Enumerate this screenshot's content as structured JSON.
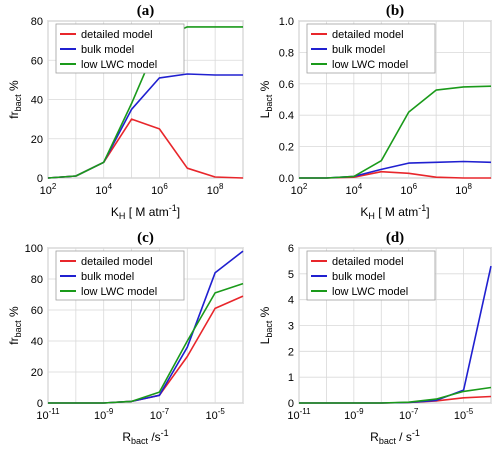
{
  "chart_data": [
    {
      "type": "line",
      "title": "(a)",
      "x_scale": "log",
      "xlim": [
        100,
        1000000000
      ],
      "ylim": [
        0,
        80
      ],
      "xlabel": {
        "main": "K",
        "sub": "H",
        "rest": " [ M atm",
        "sup": "-1",
        "end": "]"
      },
      "ylabel": {
        "main": "fr",
        "sub": "bact",
        "rest": " %"
      },
      "x_ticks": [
        100,
        10000,
        1000000,
        100000000
      ],
      "x_tick_labels": [
        {
          "base": "10",
          "exp": "2"
        },
        {
          "base": "10",
          "exp": "4"
        },
        {
          "base": "10",
          "exp": "6"
        },
        {
          "base": "10",
          "exp": "8"
        }
      ],
      "y_ticks": [
        0,
        20,
        40,
        60,
        80
      ],
      "y_tick_labels": [
        "0",
        "20",
        "40",
        "60",
        "80"
      ],
      "grid": true,
      "legend_position": "top-left",
      "x": [
        100,
        1000,
        10000,
        100000,
        1000000,
        10000000,
        100000000,
        1000000000
      ],
      "series": [
        {
          "name": "detailed model",
          "color": "#e8262b",
          "values": [
            0,
            1,
            8,
            30,
            25,
            5,
            0.5,
            0
          ]
        },
        {
          "name": "bulk model",
          "color": "#2020d0",
          "values": [
            0,
            1,
            8,
            35,
            51,
            53,
            52.5,
            52.5
          ]
        },
        {
          "name": "low LWC model",
          "color": "#1a9a1a",
          "values": [
            0,
            1,
            8,
            38,
            71,
            77,
            77,
            77
          ]
        }
      ]
    },
    {
      "type": "line",
      "title": "(b)",
      "x_scale": "log",
      "xlim": [
        100,
        1000000000
      ],
      "ylim": [
        0,
        1.0
      ],
      "xlabel": {
        "main": "K",
        "sub": "H",
        "rest": " [ M atm",
        "sup": "-1",
        "end": "]"
      },
      "ylabel": {
        "main": "L",
        "sub": "bact",
        "rest": " %"
      },
      "x_ticks": [
        100,
        10000,
        1000000,
        100000000
      ],
      "x_tick_labels": [
        {
          "base": "10",
          "exp": "2"
        },
        {
          "base": "10",
          "exp": "4"
        },
        {
          "base": "10",
          "exp": "6"
        },
        {
          "base": "10",
          "exp": "8"
        }
      ],
      "y_ticks": [
        0,
        0.2,
        0.4,
        0.6,
        0.8,
        1.0
      ],
      "y_tick_labels": [
        "0.0",
        "0.2",
        "0.4",
        "0.6",
        "0.8",
        "1.0"
      ],
      "grid": true,
      "legend_position": "top-left",
      "x": [
        100,
        1000,
        10000,
        100000,
        1000000,
        10000000,
        100000000,
        1000000000
      ],
      "series": [
        {
          "name": "detailed model",
          "color": "#e8262b",
          "values": [
            0,
            0,
            0.005,
            0.04,
            0.03,
            0.005,
            0,
            0
          ]
        },
        {
          "name": "bulk model",
          "color": "#2020d0",
          "values": [
            0,
            0,
            0.01,
            0.055,
            0.095,
            0.1,
            0.105,
            0.1
          ]
        },
        {
          "name": "low LWC model",
          "color": "#1a9a1a",
          "values": [
            0,
            0,
            0.01,
            0.11,
            0.42,
            0.56,
            0.58,
            0.585
          ]
        }
      ]
    },
    {
      "type": "line",
      "title": "(c)",
      "x_scale": "log",
      "xlim": [
        1e-11,
        0.0001
      ],
      "ylim": [
        0,
        100
      ],
      "xlabel": {
        "main": "R",
        "sub": "bact",
        "rest": " /s",
        "sup": "-1",
        "end": ""
      },
      "ylabel": {
        "main": "fr",
        "sub": "bact",
        "rest": " %"
      },
      "x_ticks": [
        1e-11,
        1e-09,
        1e-07,
        1e-05
      ],
      "x_tick_labels": [
        {
          "base": "10",
          "exp": "-11"
        },
        {
          "base": "10",
          "exp": "-9"
        },
        {
          "base": "10",
          "exp": "-7"
        },
        {
          "base": "10",
          "exp": "-5"
        }
      ],
      "y_ticks": [
        0,
        20,
        40,
        60,
        80,
        100
      ],
      "y_tick_labels": [
        "0",
        "20",
        "40",
        "60",
        "80",
        "100"
      ],
      "grid": true,
      "legend_position": "top-left",
      "x": [
        1e-11,
        1e-10,
        1e-09,
        1e-08,
        1e-07,
        1e-06,
        1e-05,
        0.0001
      ],
      "series": [
        {
          "name": "detailed model",
          "color": "#e8262b",
          "values": [
            0,
            0,
            0,
            1,
            5,
            30,
            61,
            69
          ]
        },
        {
          "name": "bulk model",
          "color": "#2020d0",
          "values": [
            0,
            0,
            0,
            1,
            5,
            36,
            84,
            98
          ]
        },
        {
          "name": "low LWC model",
          "color": "#1a9a1a",
          "values": [
            0,
            0,
            0,
            1,
            7,
            40,
            71,
            77
          ]
        }
      ]
    },
    {
      "type": "line",
      "title": "(d)",
      "x_scale": "log",
      "xlim": [
        1e-11,
        0.0001
      ],
      "ylim": [
        0,
        6
      ],
      "xlabel": {
        "main": "R",
        "sub": "bact",
        "rest": " / s",
        "sup": "-1",
        "end": ""
      },
      "ylabel": {
        "main": "L",
        "sub": "bact",
        "rest": " %"
      },
      "x_ticks": [
        1e-11,
        1e-09,
        1e-07,
        1e-05
      ],
      "x_tick_labels": [
        {
          "base": "10",
          "exp": "-11"
        },
        {
          "base": "10",
          "exp": "-9"
        },
        {
          "base": "10",
          "exp": "-7"
        },
        {
          "base": "10",
          "exp": "-5"
        }
      ],
      "y_ticks": [
        0,
        1,
        2,
        3,
        4,
        5,
        6
      ],
      "y_tick_labels": [
        "0",
        "1",
        "2",
        "3",
        "4",
        "5",
        "6"
      ],
      "grid": true,
      "legend_position": "top-left",
      "x": [
        1e-11,
        1e-10,
        1e-09,
        1e-08,
        1e-07,
        1e-06,
        1e-05,
        0.0001
      ],
      "series": [
        {
          "name": "detailed model",
          "color": "#e8262b",
          "values": [
            0,
            0,
            0,
            0,
            0.02,
            0.08,
            0.2,
            0.25
          ]
        },
        {
          "name": "bulk model",
          "color": "#2020d0",
          "values": [
            0,
            0,
            0,
            0,
            0.02,
            0.1,
            0.5,
            5.3
          ]
        },
        {
          "name": "low LWC model",
          "color": "#1a9a1a",
          "values": [
            0,
            0,
            0,
            0,
            0.03,
            0.15,
            0.45,
            0.6
          ]
        }
      ]
    }
  ]
}
